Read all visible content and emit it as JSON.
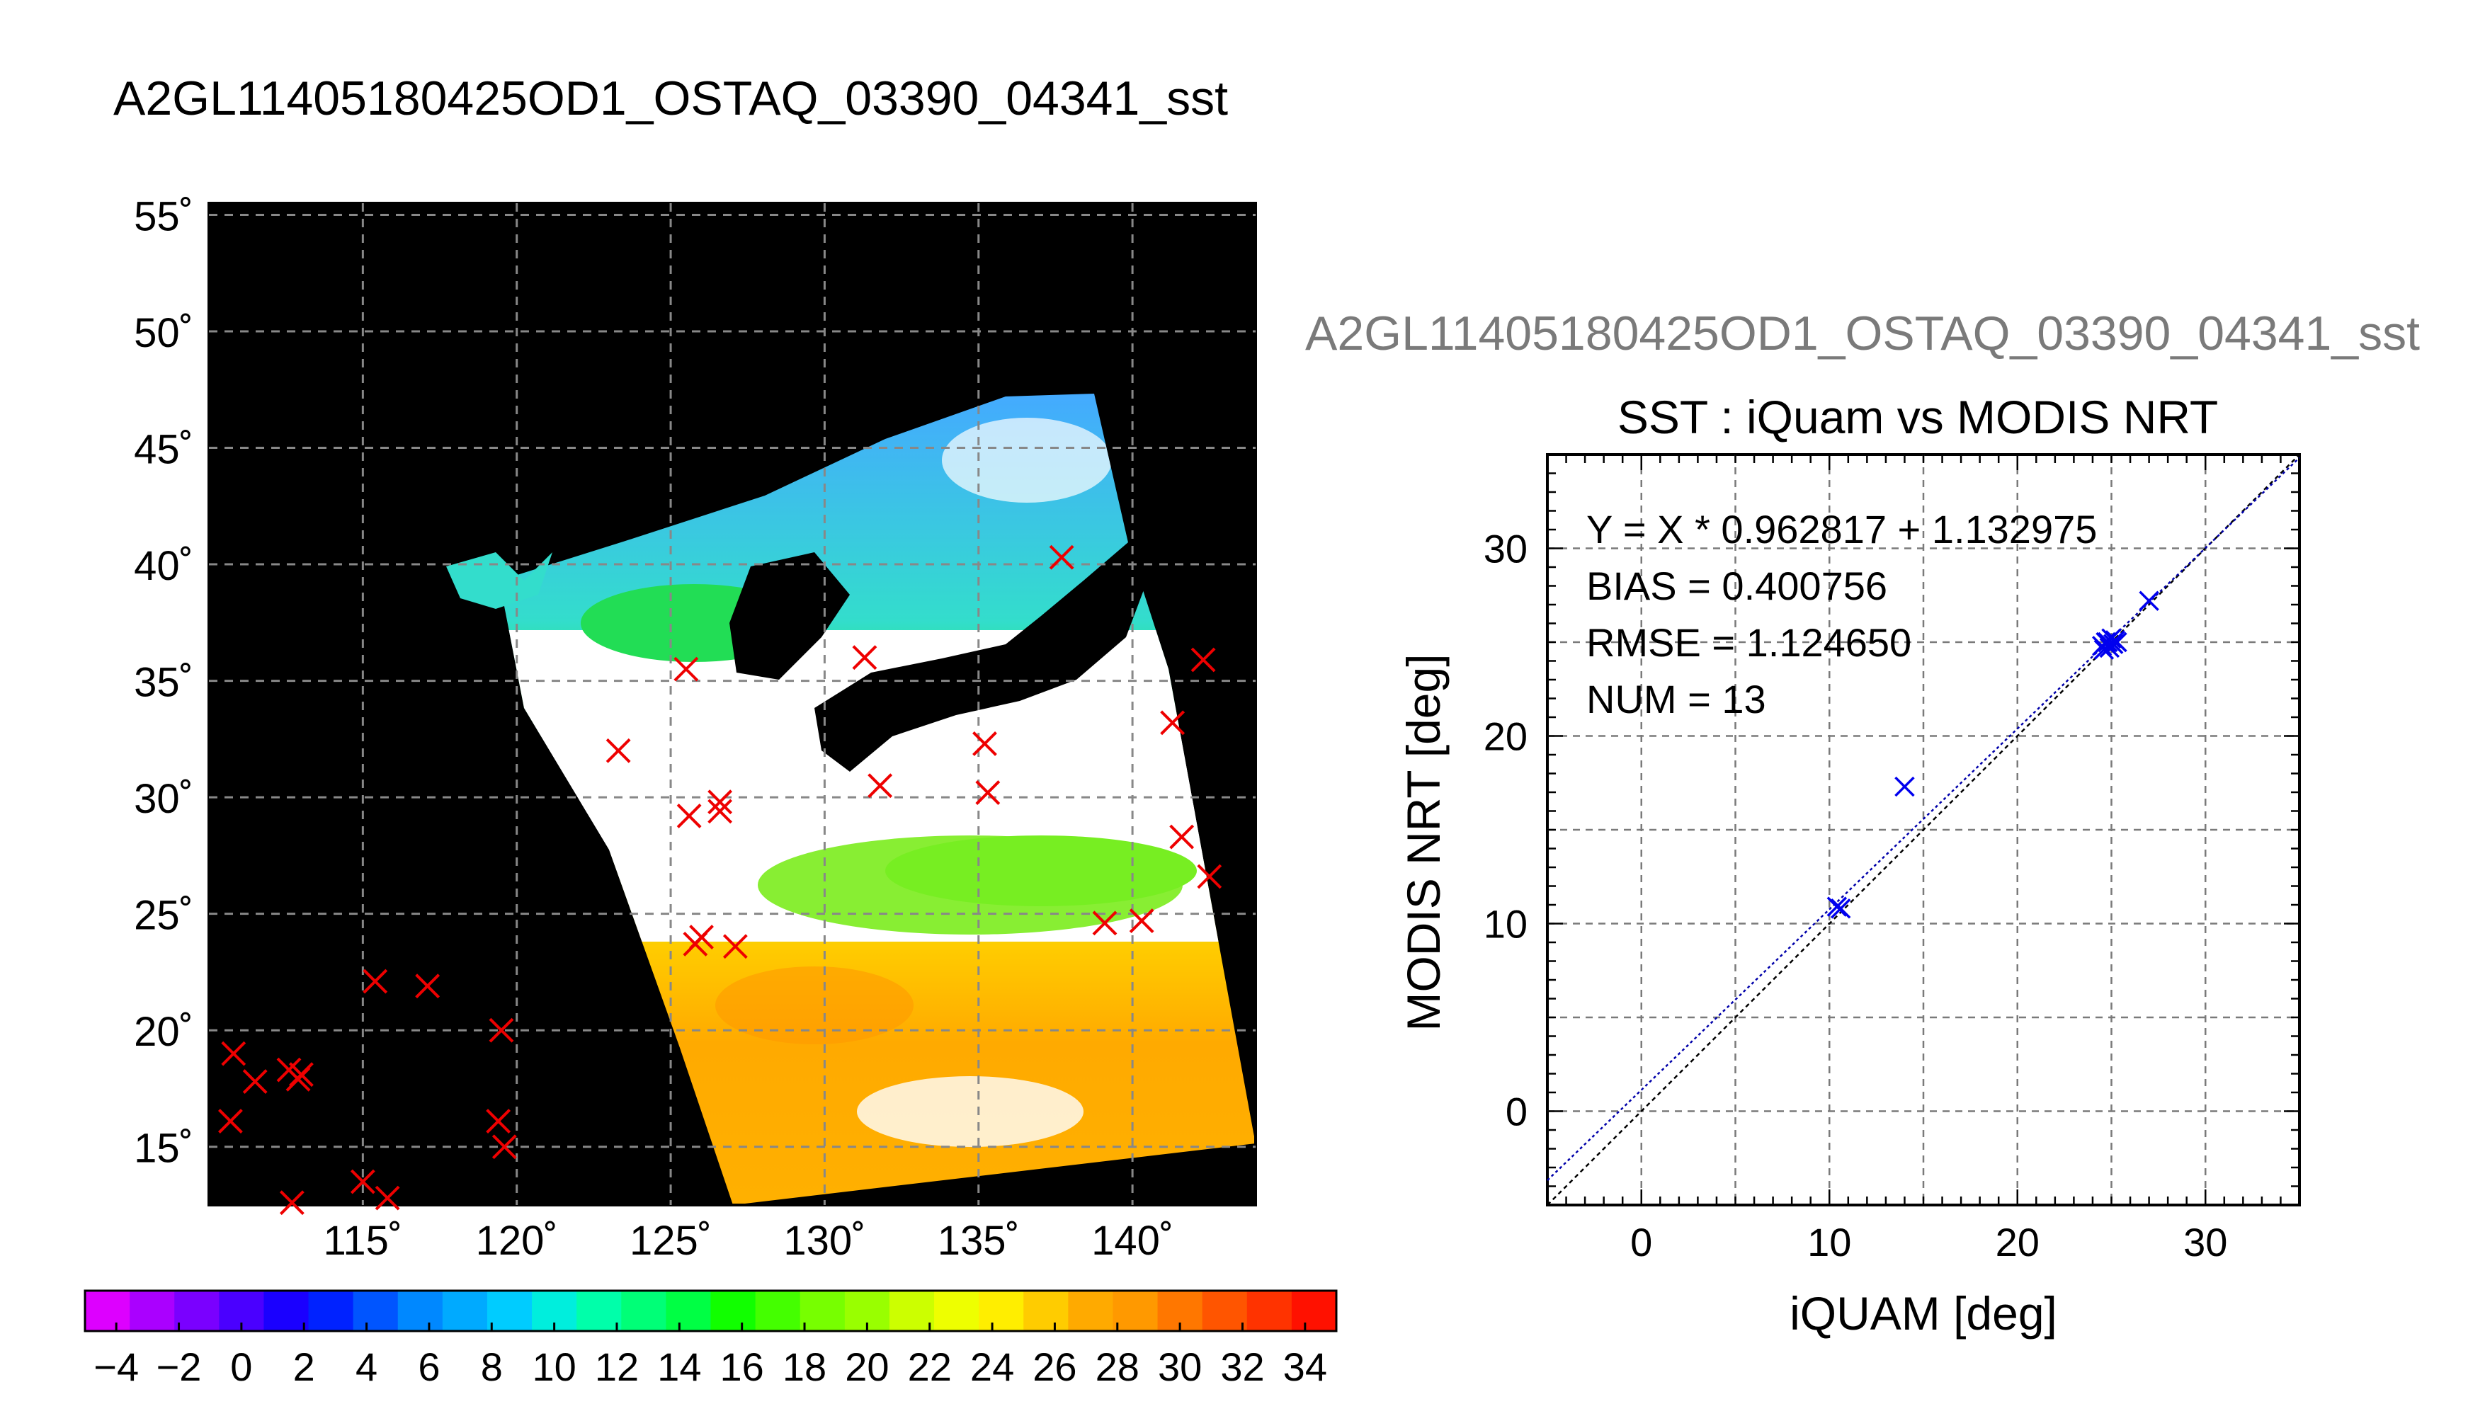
{
  "page": {
    "main_title": "A2GL11405180425OD1_OSTAQ_03390_04341_sst",
    "sub_title": "A2GL11405180425OD1_OSTAQ_03390_04341_sst"
  },
  "map": {
    "lat_ticks": [
      55,
      50,
      45,
      40,
      35,
      30,
      25,
      20,
      15
    ],
    "lon_ticks": [
      115,
      120,
      125,
      130,
      135,
      140
    ],
    "lat_range": [
      12.5,
      55.5
    ],
    "lon_range": [
      110,
      144
    ],
    "degree_symbol": "˚",
    "markers": [
      {
        "lon": 110.8,
        "lat": 19.0
      },
      {
        "lon": 110.7,
        "lat": 16.1
      },
      {
        "lon": 111.5,
        "lat": 17.8
      },
      {
        "lon": 112.6,
        "lat": 18.3
      },
      {
        "lon": 112.9,
        "lat": 17.9
      },
      {
        "lon": 113.0,
        "lat": 18.1
      },
      {
        "lon": 112.7,
        "lat": 12.6
      },
      {
        "lon": 115.0,
        "lat": 13.5
      },
      {
        "lon": 115.4,
        "lat": 22.1
      },
      {
        "lon": 115.8,
        "lat": 12.8
      },
      {
        "lon": 117.1,
        "lat": 21.9
      },
      {
        "lon": 119.5,
        "lat": 20.0
      },
      {
        "lon": 119.4,
        "lat": 16.1
      },
      {
        "lon": 119.6,
        "lat": 15.0
      },
      {
        "lon": 123.3,
        "lat": 32.0
      },
      {
        "lon": 125.5,
        "lat": 35.5
      },
      {
        "lon": 125.6,
        "lat": 29.2
      },
      {
        "lon": 125.8,
        "lat": 23.7
      },
      {
        "lon": 126.0,
        "lat": 24.0
      },
      {
        "lon": 126.6,
        "lat": 29.8
      },
      {
        "lon": 126.6,
        "lat": 29.4
      },
      {
        "lon": 127.1,
        "lat": 23.6
      },
      {
        "lon": 131.3,
        "lat": 36.0
      },
      {
        "lon": 131.8,
        "lat": 30.5
      },
      {
        "lon": 135.2,
        "lat": 32.3
      },
      {
        "lon": 135.3,
        "lat": 30.2
      },
      {
        "lon": 137.7,
        "lat": 40.3
      },
      {
        "lon": 139.1,
        "lat": 24.6
      },
      {
        "lon": 140.3,
        "lat": 24.7
      },
      {
        "lon": 141.3,
        "lat": 33.2
      },
      {
        "lon": 141.6,
        "lat": 28.3
      },
      {
        "lon": 142.3,
        "lat": 35.9
      },
      {
        "lon": 142.5,
        "lat": 26.6
      }
    ]
  },
  "colorbar": {
    "labels": [
      "−4",
      "−2",
      "0",
      "2",
      "4",
      "6",
      "8",
      "10",
      "12",
      "14",
      "16",
      "18",
      "20",
      "22",
      "24",
      "26",
      "28",
      "30",
      "32",
      "34"
    ],
    "min": -5,
    "max": 35,
    "colors": [
      "#dd00ff",
      "#aa00ff",
      "#7a00ff",
      "#4a00ff",
      "#1a00ff",
      "#0022ff",
      "#0055ff",
      "#0088ff",
      "#00aaff",
      "#00ccff",
      "#00eedd",
      "#00ffaa",
      "#00ff77",
      "#00ff44",
      "#11ff00",
      "#44ff00",
      "#77ff00",
      "#99ff00",
      "#ccff00",
      "#eeff00",
      "#ffee00",
      "#ffcc00",
      "#ffaa00",
      "#ff9900",
      "#ff7700",
      "#ff5500",
      "#ff3300",
      "#ff1100"
    ]
  },
  "chart_data": {
    "type": "scatter",
    "title": "SST : iQuam vs MODIS NRT",
    "xlabel": "iQUAM [deg]",
    "ylabel": "MODIS NRT [deg]",
    "xlim": [
      -5,
      35
    ],
    "ylim": [
      -5,
      35
    ],
    "xticks": [
      0,
      10,
      20,
      30
    ],
    "yticks": [
      0,
      10,
      20,
      30
    ],
    "grid": true,
    "annotations": [
      "Y = X * 0.962817 + 1.132975",
      "BIAS = 0.400756",
      "RMSE = 1.124650",
      "NUM = 13"
    ],
    "fit": {
      "slope": 0.962817,
      "intercept": 1.132975
    },
    "points": [
      {
        "x": 10.4,
        "y": 10.9
      },
      {
        "x": 10.6,
        "y": 10.8
      },
      {
        "x": 14.0,
        "y": 17.3
      },
      {
        "x": 24.5,
        "y": 24.8
      },
      {
        "x": 24.6,
        "y": 24.6
      },
      {
        "x": 24.8,
        "y": 25.0
      },
      {
        "x": 24.9,
        "y": 24.7
      },
      {
        "x": 25.0,
        "y": 25.2
      },
      {
        "x": 25.1,
        "y": 24.9
      },
      {
        "x": 25.2,
        "y": 25.1
      },
      {
        "x": 24.7,
        "y": 25.0
      },
      {
        "x": 25.3,
        "y": 25.0
      },
      {
        "x": 27.0,
        "y": 27.2
      }
    ],
    "colors": {
      "points": "#0000ee",
      "fit_line": "#0000aa",
      "identity_line": "#000000"
    }
  }
}
